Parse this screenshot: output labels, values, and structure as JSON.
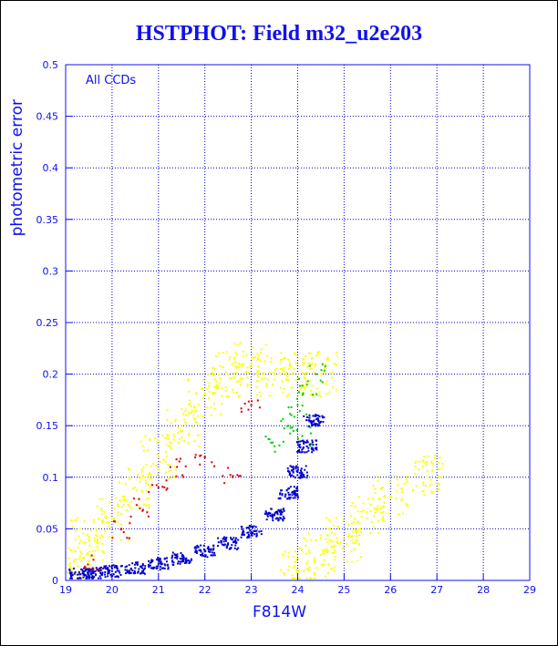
{
  "chart_data": {
    "type": "scatter",
    "title": "HSTPHOT: Field m32_u2e203",
    "xlabel": "F814W",
    "ylabel": "photometric error",
    "annotation": "All CCDs",
    "xlim": [
      19,
      29
    ],
    "ylim": [
      0,
      0.5
    ],
    "x_ticks": [
      19,
      20,
      21,
      22,
      23,
      24,
      25,
      26,
      27,
      28,
      29
    ],
    "y_ticks": [
      0,
      0.05,
      0.1,
      0.15,
      0.2,
      0.25,
      0.3,
      0.35,
      0.4,
      0.45,
      0.5
    ],
    "grid": true,
    "colors": {
      "blue": "#0000cc",
      "yellow": "#ffff00",
      "red": "#dd0000",
      "green": "#00cc00",
      "axis": "#1010ee",
      "grid": "#0000cc"
    },
    "series": [
      {
        "color": "blue",
        "description": "dense lower envelope",
        "points": [
          [
            19.3,
            0.006
          ],
          [
            19.6,
            0.007
          ],
          [
            20.0,
            0.009
          ],
          [
            20.5,
            0.012
          ],
          [
            21.0,
            0.016
          ],
          [
            21.5,
            0.021
          ],
          [
            22.0,
            0.028
          ],
          [
            22.5,
            0.036
          ],
          [
            23.0,
            0.047
          ],
          [
            23.5,
            0.064
          ],
          [
            23.8,
            0.085
          ],
          [
            24.0,
            0.105
          ],
          [
            24.2,
            0.13
          ],
          [
            24.35,
            0.155
          ]
        ]
      },
      {
        "color": "yellow",
        "description": "broad scatter above and below the blue sequence",
        "points": [
          [
            19.2,
            0.02
          ],
          [
            19.5,
            0.04
          ],
          [
            20.0,
            0.06
          ],
          [
            20.5,
            0.09
          ],
          [
            21.0,
            0.12
          ],
          [
            21.5,
            0.15
          ],
          [
            22.0,
            0.18
          ],
          [
            22.5,
            0.2
          ],
          [
            23.0,
            0.21
          ],
          [
            23.5,
            0.2
          ],
          [
            24.0,
            0.2
          ],
          [
            24.5,
            0.2
          ],
          [
            24.0,
            0.01
          ],
          [
            24.5,
            0.025
          ],
          [
            25.0,
            0.04
          ],
          [
            25.5,
            0.06
          ],
          [
            26.0,
            0.08
          ],
          [
            26.8,
            0.1
          ]
        ]
      },
      {
        "color": "red",
        "description": "sparse points within the scatter",
        "points": [
          [
            19.6,
            0.02
          ],
          [
            20.2,
            0.05
          ],
          [
            20.6,
            0.07
          ],
          [
            21.0,
            0.09
          ],
          [
            21.4,
            0.11
          ],
          [
            22.0,
            0.12
          ],
          [
            22.6,
            0.1
          ],
          [
            23.0,
            0.17
          ]
        ]
      },
      {
        "color": "green",
        "description": "points along the faint edge",
        "points": [
          [
            23.5,
            0.13
          ],
          [
            23.8,
            0.15
          ],
          [
            24.0,
            0.17
          ],
          [
            24.2,
            0.19
          ],
          [
            24.4,
            0.2
          ],
          [
            24.1,
            0.14
          ]
        ]
      }
    ]
  }
}
